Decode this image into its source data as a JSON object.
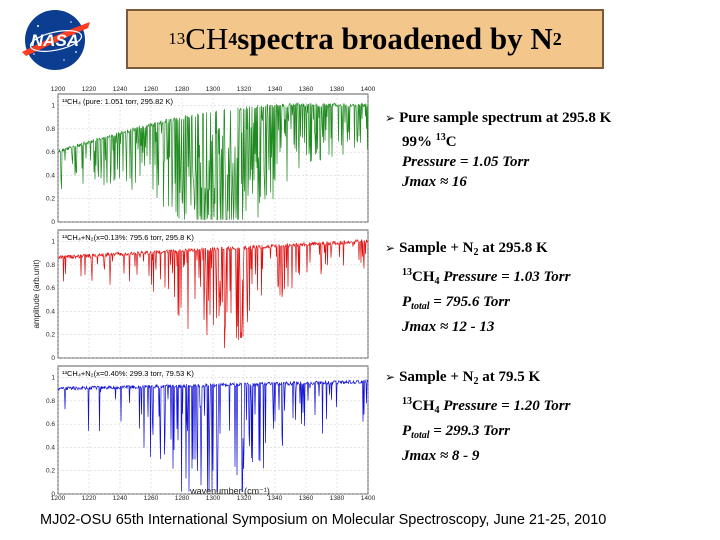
{
  "logo": {
    "text": "NASA"
  },
  "title": {
    "sup": "13",
    "main": "CH",
    "sub": "4",
    "rest": " spectra broadened by N",
    "sub2": "2"
  },
  "chart_data": {
    "type": "line",
    "xlabel": "wavenumber (cm⁻¹)",
    "ylabel": "amplitude (arb.unit)",
    "xlim": [
      1200,
      1400
    ],
    "xticks": [
      "1200",
      "1220",
      "1240",
      "1260",
      "1280",
      "1300",
      "1320",
      "1340",
      "1360",
      "1380",
      "1400"
    ],
    "panels": [
      {
        "label": "¹³CH₄ (pure: 1.051 torr, 295.82 K)",
        "color": "#1f8a1f",
        "ylim": [
          0,
          1.1
        ],
        "yticks": [
          "0",
          "0.2",
          "0.4",
          "0.6",
          "0.8",
          "1"
        ]
      },
      {
        "label": "¹³CH₄+N₂(x=0.13%: 795.6 torr, 295.8 K)",
        "color": "#e01010",
        "ylim": [
          0,
          1.1
        ],
        "yticks": [
          "0",
          "0.2",
          "0.4",
          "0.6",
          "0.8",
          "1"
        ]
      },
      {
        "label": "¹³CH₄+N₂(x=0.40%: 299.3 torr, 79.53 K)",
        "color": "#1010d8",
        "ylim": [
          0,
          1.1
        ],
        "yticks": [
          "0",
          "0.2",
          "0.4",
          "0.6",
          "0.8",
          "1"
        ]
      }
    ]
  },
  "bullets": {
    "b1": {
      "head": "Pure sample spectrum at 295.8 K",
      "line1_a": "99% ",
      "line1_sup": "13",
      "line1_b": "C",
      "line2": "Pressure  = 1.05 Torr",
      "line3": "Jmax ≈ 16"
    },
    "b2": {
      "head_a": "Sample + N",
      "head_sub": "2",
      "head_b": " at 295.8 K",
      "line1_sup": "13",
      "line1_a": "CH",
      "line1_sub": "4",
      "line1_b": " Pressure = 1.03 Torr",
      "line2_a": "P",
      "line2_sub": "total",
      "line2_b": "  = 795.6 Torr",
      "line3": "Jmax ≈ 12 - 13"
    },
    "b3": {
      "head_a": "Sample + N",
      "head_sub": "2",
      "head_b": "  at  79.5 K",
      "line1_sup": "13",
      "line1_a": "CH",
      "line1_sub": "4",
      "line1_b": " Pressure = 1.20 Torr",
      "line2_a": "P",
      "line2_sub": "total",
      "line2_b": "  = 299.3 Torr",
      "line3": "Jmax ≈ 8 - 9"
    }
  },
  "footer": {
    "text": "MJ02-OSU 65th International Symposium on Molecular Spectroscopy, June 21-25, 2010"
  },
  "colors": {
    "title_bg": "#f3c68c",
    "nasa_blue": "#0b3d91",
    "nasa_red": "#fc3d21"
  }
}
